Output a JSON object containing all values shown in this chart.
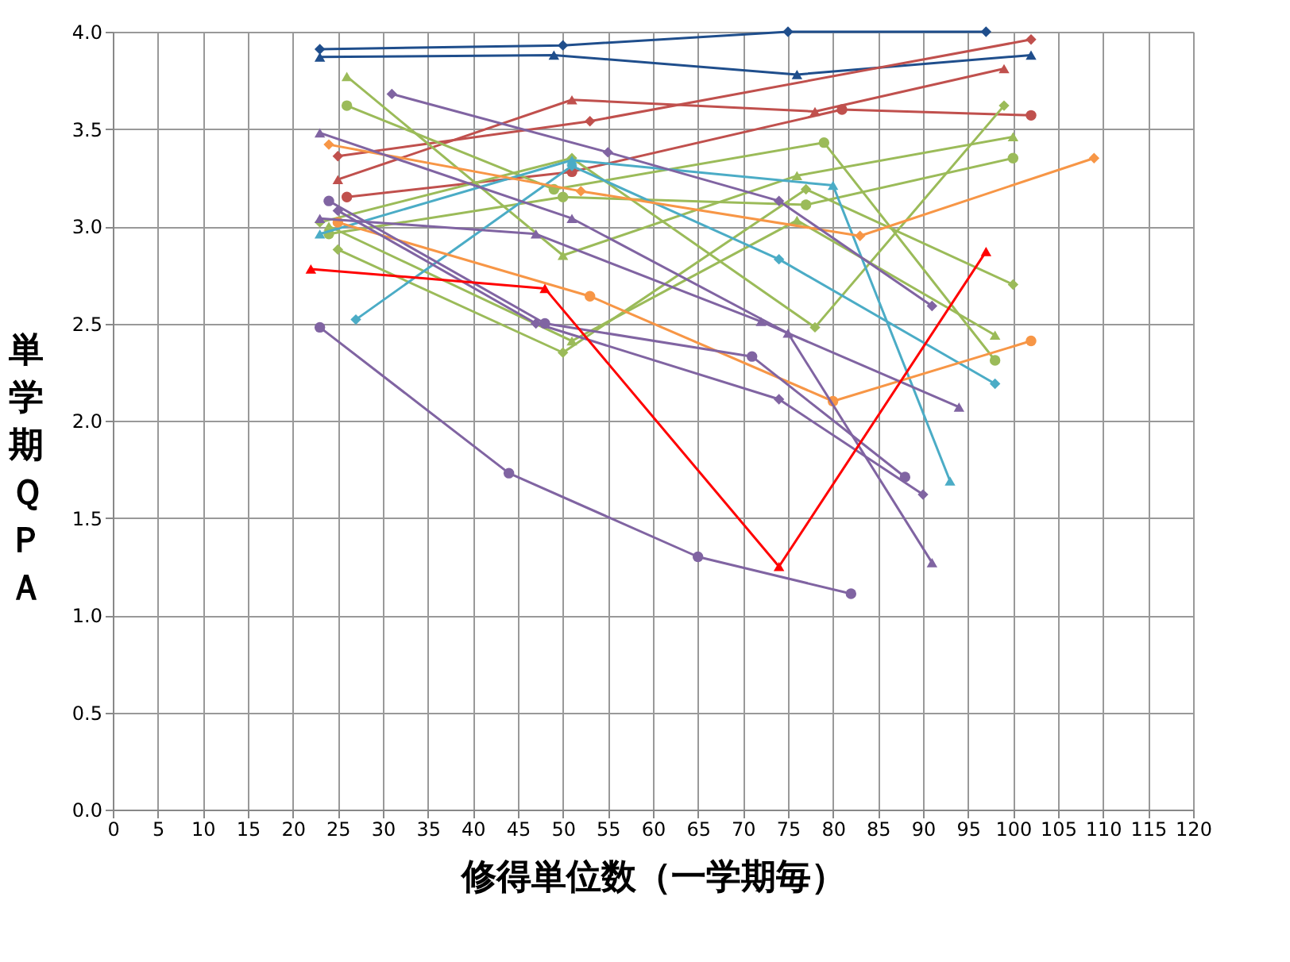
{
  "chart_data": {
    "type": "line",
    "xlabel": "修得単位数（一学期毎）",
    "ylabel": "単学期ＱＰＡ",
    "xlim": [
      0,
      120
    ],
    "ylim": [
      0,
      4
    ],
    "xticks": [
      0,
      5,
      10,
      15,
      20,
      25,
      30,
      35,
      40,
      45,
      50,
      55,
      60,
      65,
      70,
      75,
      80,
      85,
      90,
      95,
      100,
      105,
      110,
      115,
      120
    ],
    "yticks": [
      {
        "value": 0,
        "label": "0.0"
      },
      0.5,
      {
        "value": 1,
        "label": "1.0"
      },
      1.5,
      {
        "value": 2,
        "label": "2.0"
      },
      2.5,
      {
        "value": 3,
        "label": "3.0"
      },
      3.5,
      {
        "value": 4,
        "label": "4.0"
      }
    ],
    "grid": true,
    "line_style": "solid",
    "series": [
      {
        "color": "#1f4e8c",
        "marker": "diamond",
        "x": [
          23,
          50,
          75,
          97
        ],
        "values": [
          3.91,
          3.93,
          4.0,
          4.0
        ]
      },
      {
        "color": "#1f4e8c",
        "marker": "triangle",
        "x": [
          23,
          49,
          76,
          102
        ],
        "values": [
          3.87,
          3.88,
          3.78,
          3.88
        ]
      },
      {
        "color": "#c0504d",
        "marker": "diamond",
        "x": [
          25,
          53,
          102
        ],
        "values": [
          3.36,
          3.54,
          3.96
        ]
      },
      {
        "color": "#c0504d",
        "marker": "triangle",
        "x": [
          25,
          51,
          78,
          99
        ],
        "values": [
          3.24,
          3.65,
          3.59,
          3.81
        ]
      },
      {
        "color": "#c0504d",
        "marker": "circle",
        "x": [
          26,
          51,
          81,
          102
        ],
        "values": [
          3.15,
          3.28,
          3.6,
          3.57
        ]
      },
      {
        "color": "#9bbb59",
        "marker": "triangle",
        "x": [
          26,
          50,
          76,
          100
        ],
        "values": [
          3.77,
          2.85,
          3.26,
          3.46
        ]
      },
      {
        "color": "#9bbb59",
        "marker": "circle",
        "x": [
          26,
          49,
          79,
          98
        ],
        "values": [
          3.62,
          3.19,
          3.43,
          2.31
        ]
      },
      {
        "color": "#9bbb59",
        "marker": "circle",
        "x": [
          24,
          50,
          77,
          100
        ],
        "values": [
          2.96,
          3.15,
          3.11,
          3.35
        ]
      },
      {
        "color": "#9bbb59",
        "marker": "triangle",
        "x": [
          24,
          51,
          76,
          98
        ],
        "values": [
          3.0,
          2.41,
          3.03,
          2.44
        ]
      },
      {
        "color": "#9bbb59",
        "marker": "diamond",
        "x": [
          25,
          50,
          77,
          100
        ],
        "values": [
          2.88,
          2.35,
          3.19,
          2.7
        ]
      },
      {
        "color": "#9bbb59",
        "marker": "diamond",
        "x": [
          23,
          51,
          78,
          99
        ],
        "values": [
          3.02,
          3.35,
          2.48,
          3.62
        ]
      },
      {
        "color": "#4bacc6",
        "marker": "triangle",
        "x": [
          23,
          51,
          80,
          93
        ],
        "values": [
          2.96,
          3.34,
          3.21,
          1.69
        ]
      },
      {
        "color": "#4bacc6",
        "marker": "diamond",
        "x": [
          27,
          51,
          74,
          98
        ],
        "values": [
          2.52,
          3.31,
          2.83,
          2.19
        ]
      },
      {
        "color": "#f79646",
        "marker": "diamond",
        "x": [
          24,
          52,
          83,
          109
        ],
        "values": [
          3.42,
          3.18,
          2.95,
          3.35
        ]
      },
      {
        "color": "#f79646",
        "marker": "circle",
        "x": [
          25,
          53,
          80,
          102
        ],
        "values": [
          3.02,
          2.64,
          2.1,
          2.41
        ]
      },
      {
        "color": "#8064a2",
        "marker": "diamond",
        "x": [
          31,
          55,
          74,
          91
        ],
        "values": [
          3.68,
          3.38,
          3.13,
          2.59
        ]
      },
      {
        "color": "#8064a2",
        "marker": "triangle",
        "x": [
          23,
          51,
          75,
          91
        ],
        "values": [
          3.48,
          3.04,
          2.45,
          1.27
        ]
      },
      {
        "color": "#8064a2",
        "marker": "triangle",
        "x": [
          23,
          47,
          72,
          94
        ],
        "values": [
          3.04,
          2.96,
          2.51,
          2.07
        ]
      },
      {
        "color": "#8064a2",
        "marker": "circle",
        "x": [
          24,
          48,
          71,
          88
        ],
        "values": [
          3.13,
          2.5,
          2.33,
          1.71
        ]
      },
      {
        "color": "#8064a2",
        "marker": "diamond",
        "x": [
          25,
          47,
          74,
          90
        ],
        "values": [
          3.08,
          2.5,
          2.11,
          1.62
        ]
      },
      {
        "color": "#8064a2",
        "marker": "circle",
        "x": [
          23,
          44,
          65,
          82
        ],
        "values": [
          2.48,
          1.73,
          1.3,
          1.11
        ]
      },
      {
        "color": "#ff0000",
        "marker": "triangle",
        "x": [
          22,
          48,
          74,
          97
        ],
        "values": [
          2.78,
          2.68,
          1.25,
          2.87
        ]
      }
    ]
  }
}
